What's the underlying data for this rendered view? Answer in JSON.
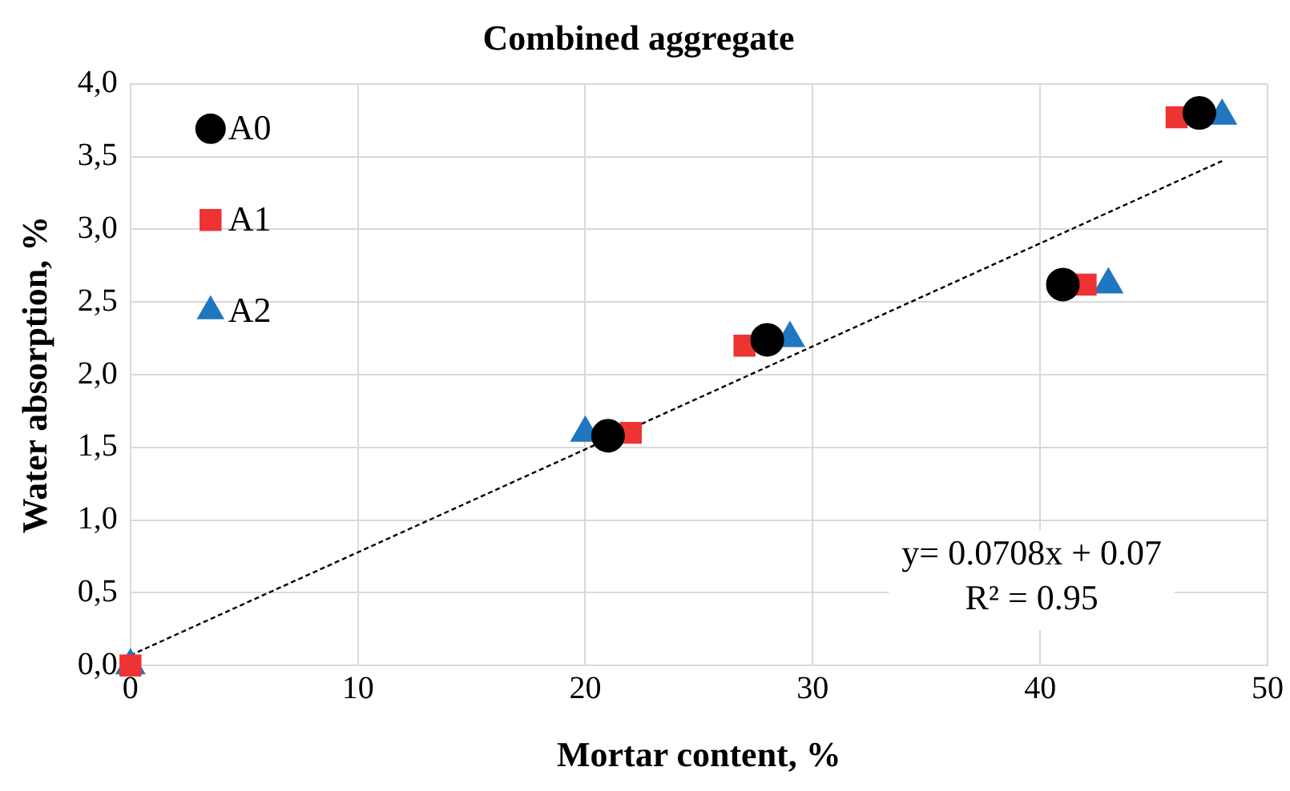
{
  "chart_data": {
    "type": "scatter",
    "title": "Combined aggregate",
    "xlabel": "Mortar content, %",
    "ylabel": "Water absorption, %",
    "xlim": [
      0,
      50
    ],
    "xticks": [
      0,
      10,
      20,
      30,
      40,
      50
    ],
    "ylim": [
      0,
      4
    ],
    "yticks": [
      {
        "value": 0,
        "label": "0,0"
      },
      {
        "value": 0.5,
        "label": "0,5"
      },
      {
        "value": 1,
        "label": "1,0"
      },
      {
        "value": 1.5,
        "label": "1,5"
      },
      {
        "value": 2,
        "label": "2,0"
      },
      {
        "value": 2.5,
        "label": "2,5"
      },
      {
        "value": 3,
        "label": "3,0"
      },
      {
        "value": 3.5,
        "label": "3,5"
      },
      {
        "value": 4,
        "label": "4,0"
      }
    ],
    "grid": true,
    "legend": "top left",
    "annotations": [
      "y= 0.0708x + 0.07",
      "R² = 0.95"
    ],
    "series": [
      {
        "name": "A0",
        "color": "#000000",
        "marker": "circle",
        "x": [
          21,
          28,
          41,
          47
        ],
        "values": [
          1.58,
          2.24,
          2.62,
          3.8
        ]
      },
      {
        "name": "A1",
        "color": "#ee3333",
        "marker": "square",
        "x": [
          0,
          22,
          27,
          42,
          46
        ],
        "values": [
          0,
          1.6,
          2.2,
          2.62,
          3.77
        ]
      },
      {
        "name": "A2",
        "color": "#1f77c0",
        "marker": "triangle",
        "x": [
          0,
          20,
          29,
          43,
          48
        ],
        "values": [
          0,
          1.6,
          2.25,
          2.62,
          3.78
        ]
      },
      {
        "type": "line",
        "color": "#000000",
        "marker": "none",
        "line_style": "dotted",
        "x": [
          0,
          48
        ],
        "values": [
          0.07,
          3.47
        ]
      }
    ]
  }
}
